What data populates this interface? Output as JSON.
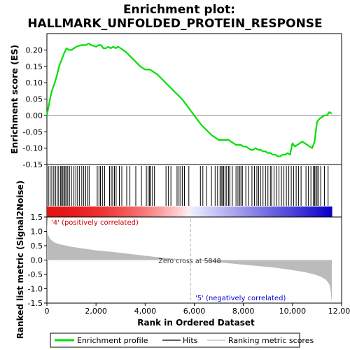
{
  "chart_data": {
    "type": "line",
    "title_line1": "Enrichment plot:",
    "title_line2": "HALLMARK_UNFOLDED_PROTEIN_RESPONSE",
    "es_panel": {
      "ylabel": "Enrichment score (ES)",
      "ylim": [
        -0.15,
        0.25
      ],
      "yticks": [
        "0.20",
        "0.15",
        "0.10",
        "0.05",
        "0.00",
        "-0.05",
        "-0.10",
        "-0.15"
      ],
      "ytick_values": [
        0.2,
        0.15,
        0.1,
        0.05,
        0.0,
        -0.05,
        -0.1,
        -0.15
      ],
      "xlim": [
        0,
        12000
      ],
      "line_color": "#00e000",
      "series": {
        "name": "Enrichment profile",
        "x": [
          0,
          100,
          200,
          300,
          400,
          500,
          600,
          700,
          800,
          900,
          1000,
          1200,
          1400,
          1600,
          1700,
          1800,
          2000,
          2100,
          2200,
          2300,
          2400,
          2500,
          2600,
          2700,
          2800,
          2900,
          3000,
          3200,
          3400,
          3600,
          3800,
          4000,
          4100,
          4200,
          4300,
          4500,
          4700,
          4900,
          5100,
          5300,
          5500,
          5700,
          5900,
          6100,
          6300,
          6500,
          6700,
          6900,
          7000,
          7100,
          7200,
          7300,
          7400,
          7500,
          7600,
          7700,
          7800,
          7900,
          8000,
          8100,
          8200,
          8300,
          8400,
          8500,
          8600,
          8700,
          8800,
          8900,
          9000,
          9100,
          9200,
          9300,
          9400,
          9500,
          9600,
          9700,
          9800,
          9900,
          10000,
          10100,
          10200,
          10300,
          10400,
          10500,
          10600,
          10700,
          10800,
          10900,
          11000,
          11100,
          11200,
          11300,
          11400,
          11500,
          11600
        ],
        "y": [
          0.0,
          0.04,
          0.075,
          0.095,
          0.12,
          0.15,
          0.17,
          0.19,
          0.205,
          0.2,
          0.2,
          0.21,
          0.215,
          0.215,
          0.22,
          0.215,
          0.21,
          0.215,
          0.215,
          0.205,
          0.205,
          0.21,
          0.205,
          0.21,
          0.205,
          0.21,
          0.205,
          0.195,
          0.18,
          0.165,
          0.15,
          0.14,
          0.14,
          0.14,
          0.135,
          0.125,
          0.11,
          0.095,
          0.08,
          0.065,
          0.05,
          0.03,
          0.01,
          -0.01,
          -0.03,
          -0.045,
          -0.06,
          -0.07,
          -0.075,
          -0.075,
          -0.075,
          -0.075,
          -0.075,
          -0.08,
          -0.085,
          -0.09,
          -0.09,
          -0.09,
          -0.095,
          -0.095,
          -0.1,
          -0.105,
          -0.105,
          -0.1,
          -0.105,
          -0.105,
          -0.11,
          -0.11,
          -0.115,
          -0.115,
          -0.12,
          -0.12,
          -0.125,
          -0.125,
          -0.12,
          -0.12,
          -0.115,
          -0.12,
          -0.085,
          -0.095,
          -0.09,
          -0.085,
          -0.08,
          -0.085,
          -0.09,
          -0.095,
          -0.1,
          -0.08,
          -0.02,
          -0.01,
          -0.005,
          0.0,
          0.0,
          0.01,
          0.005
        ]
      }
    },
    "hits": {
      "label": "Hits",
      "positions": [
        60,
        130,
        200,
        280,
        350,
        420,
        480,
        560,
        600,
        650,
        700,
        740,
        790,
        850,
        920,
        1000,
        1100,
        1180,
        1250,
        1330,
        1420,
        1500,
        1580,
        1650,
        1720,
        2050,
        2120,
        2180,
        2260,
        2350,
        2550,
        2620,
        2680,
        2750,
        2820,
        2950,
        3050,
        3250,
        3380,
        3620,
        3850,
        4050,
        4120,
        4180,
        4230,
        4300,
        4380,
        4850,
        4950,
        5050,
        5300,
        5380,
        5450,
        5520,
        5600,
        5780,
        6250,
        6350,
        6500,
        6700,
        6850,
        6950,
        7050,
        7100,
        7150,
        7200,
        7260,
        7320,
        7400,
        7450,
        7550,
        7700,
        7780,
        7850,
        7900,
        7960,
        8100,
        8220,
        8350,
        8450,
        8550,
        8620,
        8700,
        8800,
        8900,
        9000,
        9100,
        9150,
        9250,
        9350,
        9450,
        9550,
        9650,
        9750,
        9850,
        9950,
        10050,
        10150,
        10250,
        10350,
        10550,
        10650,
        10750,
        10850,
        10900,
        10950,
        11000,
        11050,
        11150,
        11300,
        11450
      ]
    },
    "rank_panel": {
      "ylabel": "Ranked list metric (Signal2Noise)",
      "ylim": [
        -1.5,
        1.5
      ],
      "yticks": [
        "1.5",
        "1.0",
        "0.5",
        "0.0",
        "-0.5",
        "-1.0",
        "-1.5"
      ],
      "ytick_values": [
        1.5,
        1.0,
        0.5,
        0.0,
        -0.5,
        -1.0,
        -1.5
      ],
      "xlabel": "Rank in Ordered Dataset",
      "xlim": [
        0,
        12000
      ],
      "xticks": [
        "0",
        "2,000",
        "4,000",
        "6,000",
        "8,000",
        "10,000",
        "12,000"
      ],
      "xtick_values": [
        0,
        2000,
        4000,
        6000,
        8000,
        10000,
        12000
      ],
      "fill_color": "#bbbbbb",
      "profile": {
        "x": [
          0,
          20,
          60,
          120,
          200,
          300,
          500,
          800,
          1000,
          1500,
          2000,
          2500,
          3000,
          3500,
          4000,
          4500,
          5000,
          5500,
          5848,
          6500,
          7000,
          7500,
          8000,
          8500,
          9000,
          9500,
          10000,
          10500,
          10800,
          11000,
          11200,
          11350,
          11450,
          11500,
          11530,
          11560,
          11580,
          11600
        ],
        "y": [
          1.5,
          1.0,
          0.85,
          0.75,
          0.68,
          0.62,
          0.55,
          0.5,
          0.46,
          0.4,
          0.34,
          0.3,
          0.25,
          0.2,
          0.15,
          0.1,
          0.06,
          0.02,
          0.0,
          -0.04,
          -0.08,
          -0.12,
          -0.16,
          -0.2,
          -0.24,
          -0.29,
          -0.35,
          -0.42,
          -0.48,
          -0.53,
          -0.6,
          -0.68,
          -0.78,
          -0.85,
          -0.95,
          -1.1,
          -1.3,
          -1.45
        ]
      },
      "zero_cross_text": "Zero cross at 5848",
      "zero_cross_rank": 5848,
      "pos_label": "'4' (positively correlated)",
      "neg_label": "'5' (negatively correlated)",
      "pos_label_color": "#cc0000",
      "neg_label_color": "#0000cc"
    },
    "n_genes": 11600,
    "legend": {
      "placement": "bottom",
      "items": [
        {
          "label": "Enrichment profile",
          "color": "#00e000"
        },
        {
          "label": "Hits",
          "color": "#000000"
        },
        {
          "label": "Ranking metric scores",
          "color": "#bbbbbb"
        }
      ]
    }
  }
}
